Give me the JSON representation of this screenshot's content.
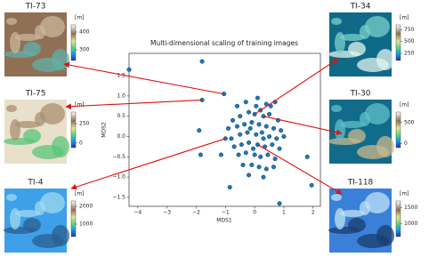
{
  "chart_data": {
    "type": "scatter",
    "title": "Multi-dimensional scaling of training images",
    "xlabel": "MDS1",
    "ylabel": "MDS2",
    "color": "#1f77b4",
    "x": [
      -4.3,
      -1.8,
      -1.8,
      -1.05,
      -1.9,
      -1.85,
      -1.15,
      -0.85,
      0.85,
      1.8,
      1.95,
      -1.0,
      -0.6,
      -0.3,
      0.1,
      0.4,
      0.7,
      -0.75,
      -0.5,
      -0.2,
      0.0,
      0.3,
      0.5,
      0.8,
      -0.9,
      -0.6,
      -0.35,
      -0.1,
      0.15,
      0.4,
      0.65,
      0.9,
      -0.8,
      -0.5,
      -0.25,
      0.05,
      0.25,
      0.5,
      0.75,
      1.0,
      -0.7,
      -0.45,
      -0.2,
      0.1,
      0.35,
      0.6,
      0.85,
      -0.55,
      -0.3,
      0.0,
      0.2,
      0.45,
      0.7,
      -0.4,
      -0.1,
      0.15,
      0.4,
      0.65,
      -0.2,
      0.3,
      0.05,
      -0.15,
      0.2,
      0.55,
      -0.05,
      0.3
    ],
    "y": [
      1.65,
      1.85,
      0.9,
      1.05,
      0.15,
      -0.45,
      -0.45,
      -1.25,
      -1.65,
      -0.5,
      -1.2,
      -0.05,
      0.75,
      0.85,
      0.95,
      0.8,
      0.85,
      0.4,
      0.5,
      0.6,
      0.55,
      0.5,
      0.55,
      0.4,
      0.2,
      0.25,
      0.3,
      0.35,
      0.3,
      0.25,
      0.2,
      0.15,
      -0.05,
      0.05,
      0.1,
      0.05,
      0.1,
      0.0,
      -0.05,
      0.0,
      -0.25,
      -0.2,
      -0.15,
      -0.2,
      -0.25,
      -0.2,
      -0.3,
      -0.45,
      -0.4,
      -0.45,
      -0.5,
      -0.45,
      -0.55,
      -0.7,
      -0.7,
      -0.75,
      -0.8,
      -0.75,
      -0.95,
      -1.0,
      0.75,
      0.2,
      0.65,
      0.75,
      -0.3,
      -0.05
    ],
    "xlim": [
      -4.3,
      2.25
    ],
    "ylim": [
      -1.72,
      2.05
    ],
    "xticks": [
      {
        "value": -4,
        "label": "−4"
      },
      {
        "value": -3,
        "label": "−3"
      },
      {
        "value": -2,
        "label": "−2"
      },
      {
        "value": -1,
        "label": "−1"
      },
      0,
      1,
      2
    ],
    "yticks": [
      {
        "value": -1.5,
        "label": "−1.5"
      },
      {
        "value": -1,
        "label": "−1.0"
      },
      {
        "value": -0.5,
        "label": "−0.5"
      },
      {
        "value": 0,
        "label": "0.0"
      },
      0.5,
      {
        "value": 1,
        "label": "1.0"
      },
      1.5
    ]
  },
  "images": [
    {
      "label": "TI-73",
      "unit": "[m]",
      "ticks": [
        300,
        400
      ],
      "clim": [
        240,
        440
      ]
    },
    {
      "label": "TI-75",
      "unit": "[m]",
      "ticks": [
        0,
        250
      ],
      "clim": [
        -60,
        400
      ]
    },
    {
      "label": "TI-4",
      "unit": "[m]",
      "ticks": [
        1000,
        2000
      ],
      "clim": [
        300,
        2300
      ]
    },
    {
      "label": "TI-34",
      "unit": "[m]",
      "ticks": [
        250,
        500,
        750
      ],
      "clim": [
        100,
        850
      ]
    },
    {
      "label": "TI-30",
      "unit": "[m]",
      "ticks": [
        0,
        500
      ],
      "clim": [
        -100,
        750
      ]
    },
    {
      "label": "TI-118",
      "unit": "[m]",
      "ticks": [
        1000,
        1500
      ],
      "clim": [
        600,
        1700
      ]
    }
  ]
}
